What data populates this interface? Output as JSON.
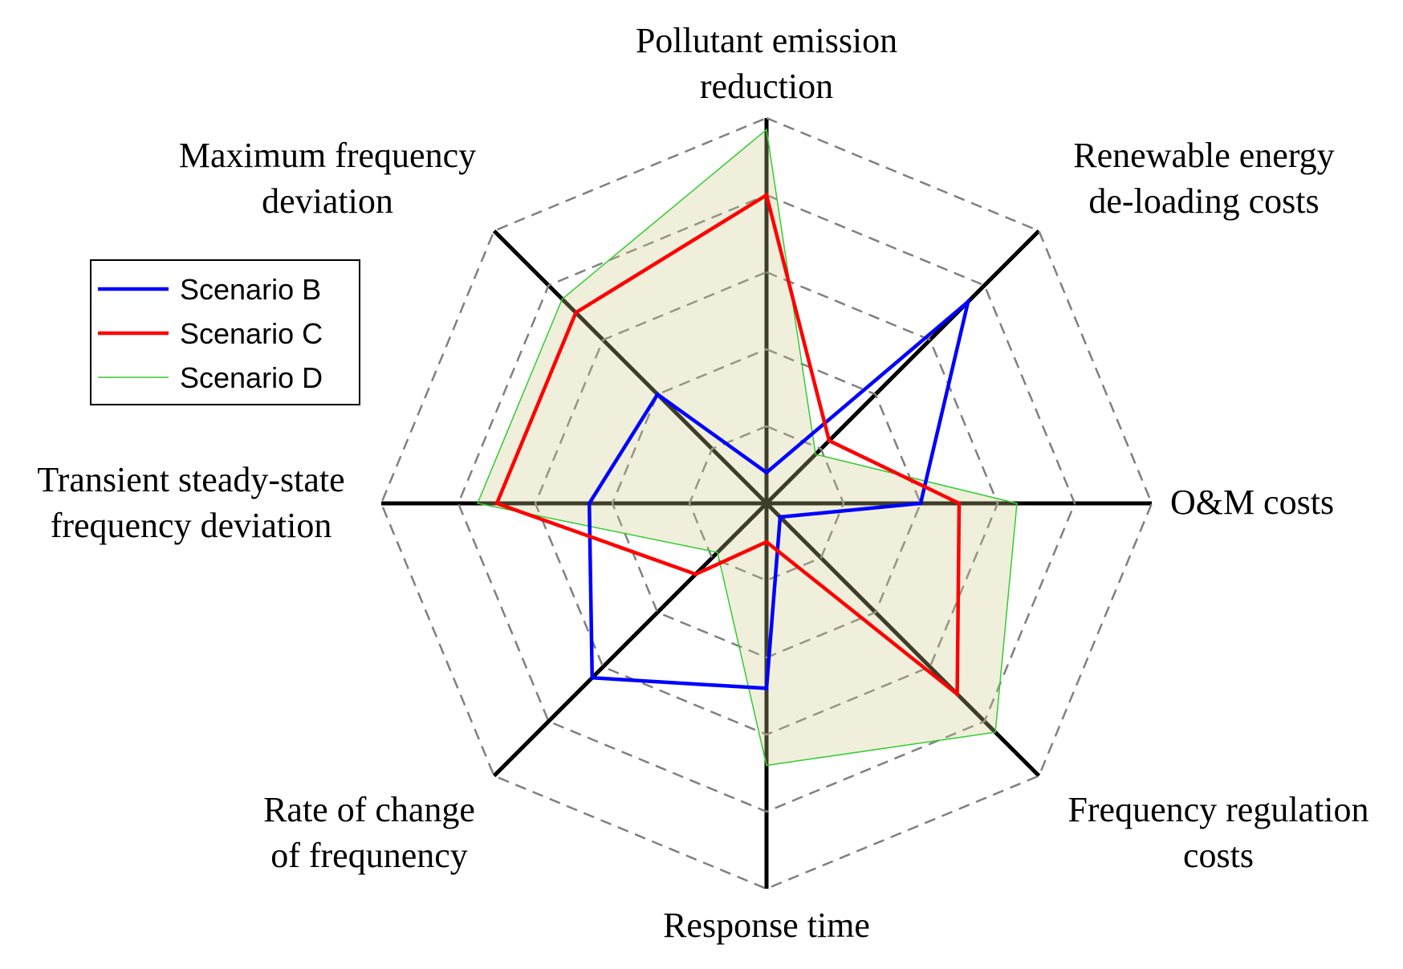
{
  "chart_data": {
    "type": "radar",
    "axes": [
      {
        "label_lines": [
          "Pollutant emission",
          "reduction"
        ]
      },
      {
        "label_lines": [
          "Renewable energy",
          "de-loading costs"
        ]
      },
      {
        "label_lines": [
          "O&M costs"
        ]
      },
      {
        "label_lines": [
          "Frequency regulation",
          "costs"
        ]
      },
      {
        "label_lines": [
          "Response time"
        ]
      },
      {
        "label_lines": [
          "Rate of change",
          "of frequnency"
        ]
      },
      {
        "label_lines": [
          "Transient steady-state",
          "frequency deviation"
        ]
      },
      {
        "label_lines": [
          "Maximum frequency",
          "deviation"
        ]
      }
    ],
    "rlim": [
      0,
      1
    ],
    "grid_rings": [
      0.2,
      0.4,
      0.6,
      0.8,
      1.0
    ],
    "series": [
      {
        "name": "Scenario B",
        "color": "#0000ff",
        "fill": false,
        "line_width": "thick",
        "values": [
          0.08,
          0.74,
          0.4,
          0.05,
          0.48,
          0.64,
          0.46,
          0.4
        ]
      },
      {
        "name": "Scenario C",
        "color": "#ff0000",
        "fill": false,
        "line_width": "thick",
        "values": [
          0.8,
          0.23,
          0.5,
          0.7,
          0.1,
          0.26,
          0.7,
          0.7
        ]
      },
      {
        "name": "Scenario D",
        "color": "#33cc33",
        "fill": true,
        "fill_color": "#ccc98a",
        "fill_opacity": 0.3,
        "line_width": "thin",
        "values": [
          0.97,
          0.18,
          0.65,
          0.84,
          0.68,
          0.18,
          0.75,
          0.75
        ]
      }
    ],
    "legend": {
      "placement": "left",
      "entries": [
        "Scenario B",
        "Scenario C",
        "Scenario D"
      ]
    },
    "grid": true
  }
}
